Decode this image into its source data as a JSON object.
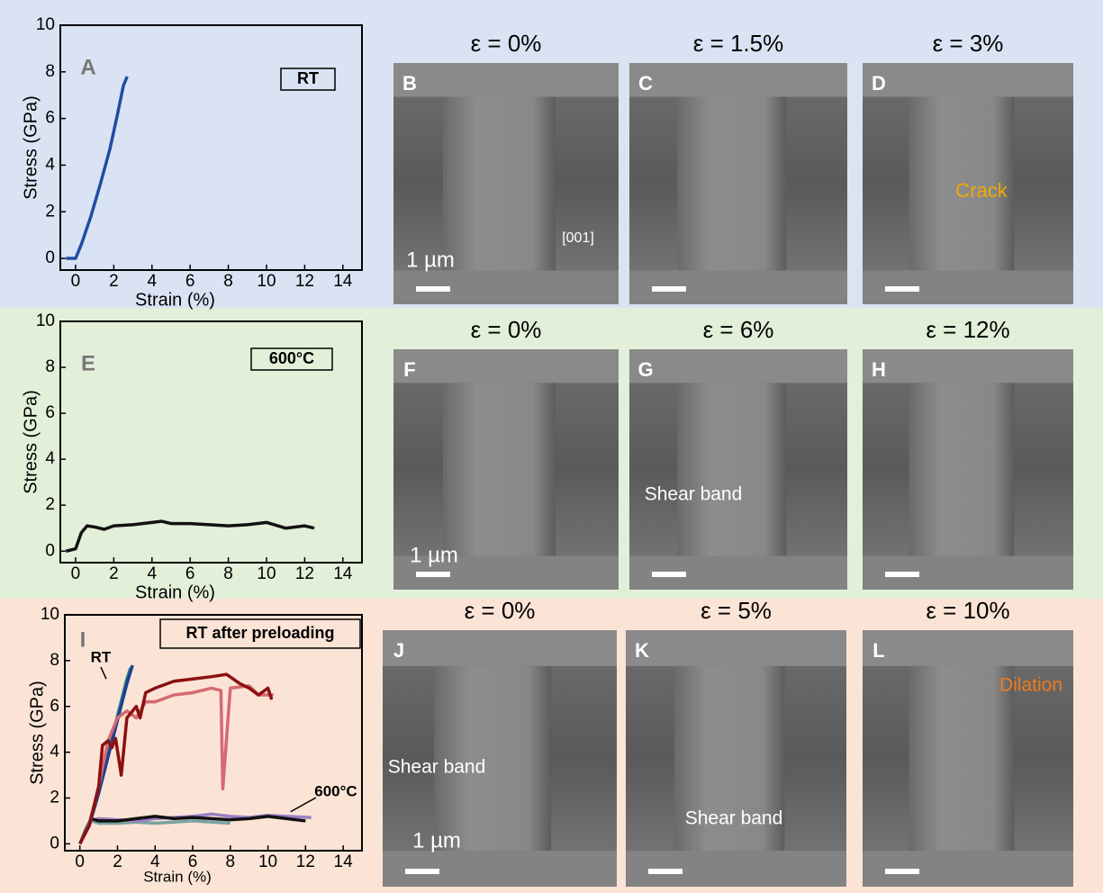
{
  "chart_data": [
    {
      "type": "line",
      "panel_label": "A",
      "box_label": "RT",
      "xlabel": "Strain (%)",
      "ylabel": "Stress (GPa)",
      "xlim": [
        -0.8,
        15
      ],
      "ylim": [
        -0.5,
        10
      ],
      "xticks": [
        0,
        2,
        4,
        6,
        8,
        10,
        12,
        14
      ],
      "yticks": [
        0,
        2,
        4,
        6,
        8,
        10
      ],
      "series": [
        {
          "color": "#1f4ea3",
          "x": [
            -0.5,
            0,
            0.3,
            0.8,
            1.3,
            1.8,
            2.2,
            2.5,
            2.7
          ],
          "values": [
            0,
            0,
            0.6,
            1.8,
            3.2,
            4.7,
            6.2,
            7.4,
            7.8
          ]
        }
      ]
    },
    {
      "type": "line",
      "panel_label": "E",
      "box_label": "600°C",
      "xlabel": "Strain (%)",
      "ylabel": "Stress (GPa)",
      "xlim": [
        -0.8,
        15
      ],
      "ylim": [
        -0.5,
        10
      ],
      "xticks": [
        0,
        2,
        4,
        6,
        8,
        10,
        12,
        14
      ],
      "yticks": [
        0,
        2,
        4,
        6,
        8,
        10
      ],
      "series": [
        {
          "color": "#111111",
          "x": [
            -0.5,
            0,
            0.3,
            0.6,
            1,
            1.5,
            2,
            3,
            4,
            4.5,
            5,
            6,
            7,
            8,
            9,
            10,
            11,
            12,
            12.5
          ],
          "values": [
            0,
            0.1,
            0.8,
            1.1,
            1.05,
            0.95,
            1.1,
            1.15,
            1.25,
            1.3,
            1.2,
            1.2,
            1.15,
            1.1,
            1.15,
            1.25,
            1.0,
            1.1,
            1.0
          ]
        }
      ]
    },
    {
      "type": "line",
      "panel_label": "I",
      "box_label": "RT after preloading",
      "xlabel": "Strain (%)",
      "ylabel": "Stress (GPa)",
      "xlim": [
        -0.8,
        15
      ],
      "ylim": [
        -0.3,
        10
      ],
      "xticks": [
        0,
        2,
        4,
        6,
        8,
        10,
        12,
        14
      ],
      "yticks": [
        0,
        2,
        4,
        6,
        8,
        10
      ],
      "annotations": [
        "RT",
        "600°C"
      ],
      "series": [
        {
          "color": "#7aa3a0",
          "x": [
            0,
            0.3,
            0.6,
            1,
            2,
            3,
            4,
            5,
            6,
            7,
            8
          ],
          "values": [
            0,
            0.5,
            1.0,
            0.9,
            0.9,
            0.95,
            0.9,
            0.95,
            1.0,
            0.95,
            0.9
          ]
        },
        {
          "color": "#9b7fc2",
          "x": [
            0,
            0.3,
            0.6,
            1,
            2,
            3,
            4,
            5,
            6,
            7,
            8,
            9,
            10,
            11,
            12.3
          ],
          "values": [
            0,
            0.5,
            1.0,
            1.1,
            1.05,
            1.0,
            1.1,
            1.15,
            1.2,
            1.3,
            1.2,
            1.15,
            1.25,
            1.2,
            1.15
          ]
        },
        {
          "color": "#111111",
          "x": [
            0,
            0.3,
            0.6,
            1,
            2,
            3,
            4,
            5,
            6,
            7,
            8,
            9,
            10,
            11,
            12
          ],
          "values": [
            0,
            0.6,
            1.1,
            1.0,
            1.0,
            1.1,
            1.2,
            1.1,
            1.15,
            1.1,
            1.05,
            1.1,
            1.2,
            1.1,
            1.0
          ]
        },
        {
          "color": "#2a8a8a",
          "x": [
            0,
            0.5,
            1,
            1.5,
            2,
            2.5,
            2.7
          ],
          "values": [
            0,
            0.9,
            2.4,
            4.0,
            5.6,
            7.2,
            7.7
          ]
        },
        {
          "color": "#1f3f8f",
          "x": [
            0,
            0.5,
            1,
            1.5,
            2,
            2.5,
            2.8
          ],
          "values": [
            0,
            0.8,
            2.2,
            3.8,
            5.4,
            7.0,
            7.8
          ]
        },
        {
          "color": "#d46a72",
          "x": [
            0,
            0.5,
            1,
            1.5,
            2,
            2.5,
            3,
            3.5,
            4,
            5,
            6,
            7,
            7.5,
            7.6,
            8,
            9,
            9.5,
            10.3
          ],
          "values": [
            0,
            0.8,
            2.5,
            4.5,
            5.5,
            5.8,
            5.5,
            6.2,
            6.2,
            6.5,
            6.6,
            6.8,
            6.7,
            2.4,
            6.8,
            6.9,
            6.5,
            6.5
          ]
        },
        {
          "color": "#8b1010",
          "x": [
            0,
            0.5,
            1,
            1.2,
            1.5,
            1.7,
            1.9,
            2.2,
            2.5,
            3,
            3.2,
            3.5,
            4,
            5,
            6,
            7,
            7.8,
            8.5,
            9,
            9.5,
            10,
            10.2
          ],
          "values": [
            0,
            0.8,
            2.5,
            4.3,
            4.5,
            4.2,
            4.6,
            3.0,
            5.5,
            6.0,
            5.5,
            6.6,
            6.8,
            7.1,
            7.2,
            7.3,
            7.4,
            7.0,
            6.8,
            6.5,
            6.8,
            6.3
          ]
        }
      ]
    }
  ],
  "images": [
    {
      "letter": "B",
      "title": "ε = 0%",
      "notes": [
        "1 µm",
        "[001]"
      ]
    },
    {
      "letter": "C",
      "title": "ε = 1.5%",
      "notes": []
    },
    {
      "letter": "D",
      "title": "ε = 3%",
      "notes": [
        "Crack"
      ]
    },
    {
      "letter": "F",
      "title": "ε = 0%",
      "notes": [
        "1 µm"
      ]
    },
    {
      "letter": "G",
      "title": "ε = 6%",
      "notes": [
        "Shear band"
      ]
    },
    {
      "letter": "H",
      "title": "ε = 12%",
      "notes": []
    },
    {
      "letter": "J",
      "title": "ε = 0%",
      "notes": [
        "Shear band",
        "1 µm"
      ]
    },
    {
      "letter": "K",
      "title": "ε = 5%",
      "notes": [
        "Shear band"
      ]
    },
    {
      "letter": "L",
      "title": "ε = 10%",
      "notes": [
        "Dilation"
      ]
    }
  ]
}
